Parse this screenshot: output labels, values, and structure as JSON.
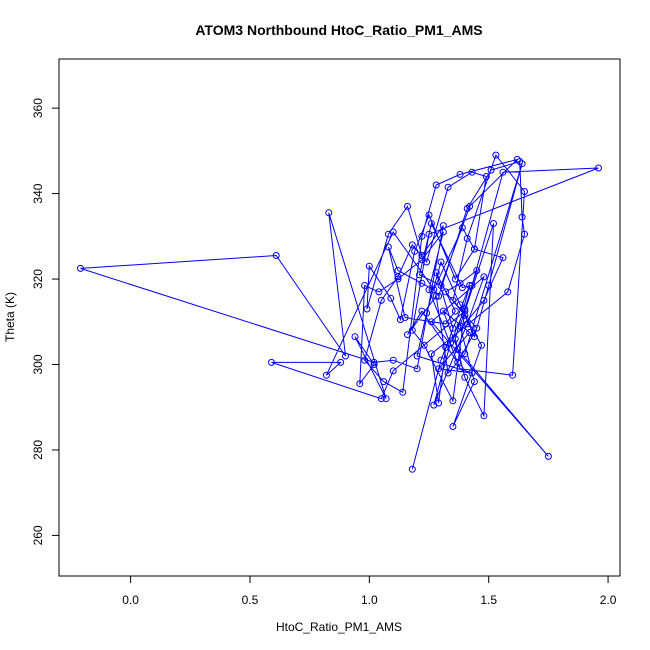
{
  "chart_data": {
    "type": "line",
    "title": "ATOM3 Northbound HtoC_Ratio_PM1_AMS",
    "xlabel": "HtoC_Ratio_PM1_AMS",
    "ylabel": "Theta (K)",
    "xlim": [
      -0.3,
      2.05
    ],
    "ylim": [
      250.5,
      371.5
    ],
    "xticks": [
      "0.0",
      "0.5",
      "1.0",
      "1.5",
      "2.0"
    ],
    "yticks": [
      "260",
      "280",
      "300",
      "320",
      "340",
      "360"
    ],
    "xtick_values": [
      0.0,
      0.5,
      1.0,
      1.5,
      2.0
    ],
    "ytick_values": [
      260,
      280,
      300,
      320,
      340,
      360
    ],
    "grid": false,
    "legend": "none",
    "series_color": "#0000ff",
    "markers": "open-circle",
    "series": [
      {
        "x": [
          1.18,
          1.3,
          1.42,
          1.36,
          1.4,
          1.48,
          1.52,
          1.38,
          1.44,
          1.35,
          1.47,
          1.4,
          1.32,
          1.38,
          1.45,
          1.4,
          1.34,
          1.27,
          1.41,
          1.48,
          1.26,
          1.75,
          1.37,
          1.31,
          1.42,
          1.29,
          1.43,
          1.2,
          1.24,
          1.3,
          1.38,
          1.44,
          1.5,
          1.64,
          1.4,
          1.33,
          1.28,
          1.16,
          1.22,
          1.37,
          1.45,
          1.35,
          1.41,
          1.53,
          1.65,
          1.6,
          1.38,
          1.25,
          1.31,
          1.22,
          1.12,
          1.04,
          0.98,
          0.96,
          1.02,
          0.94,
          1.07,
          0.83,
          0.9,
          0.61,
          -0.21,
          1.02,
          1.1,
          1.2,
          1.31,
          1.22,
          1.16,
          1.08,
          0.99,
          1.0,
          1.09,
          1.13,
          1.19,
          1.25,
          1.36,
          1.44,
          1.49,
          1.43,
          1.33,
          1.24,
          1.18,
          1.12,
          1.05,
          0.98,
          1.06,
          1.14,
          1.22,
          1.28,
          1.38,
          1.62,
          1.42,
          1.3,
          1.21,
          1.26,
          1.39,
          1.43,
          1.56,
          1.96,
          1.25,
          1.18,
          1.23,
          1.35,
          1.4,
          1.1,
          1.05,
          0.59,
          0.88,
          0.82,
          1.1,
          1.29,
          1.41,
          1.51,
          1.63,
          1.64,
          1.65,
          1.58,
          1.26,
          1.29,
          1.32,
          1.48,
          1.56,
          1.44,
          1.39,
          1.27,
          1.22,
          1.12,
          1.08,
          1.15,
          1.32,
          1.36,
          1.28,
          1.35
        ],
        "y": [
          275.5,
          301.0,
          318.5,
          306.0,
          297.0,
          288.0,
          333.0,
          309.0,
          296.0,
          285.5,
          304.5,
          311.5,
          317.0,
          319.0,
          322.0,
          313.0,
          305.0,
          290.5,
          309.5,
          320.5,
          310.0,
          278.5,
          303.5,
          312.5,
          307.5,
          299.0,
          298.0,
          302.0,
          312.0,
          324.0,
          314.0,
          306.5,
          318.5,
          347.0,
          302.5,
          298.0,
          316.0,
          307.0,
          312.5,
          300.5,
          308.5,
          315.0,
          329.5,
          349.0,
          340.5,
          297.5,
          299.0,
          317.5,
          331.0,
          324.5,
          320.0,
          317.0,
          318.5,
          295.5,
          300.0,
          306.5,
          292.0,
          335.5,
          302.0,
          325.5,
          322.5,
          300.5,
          301.0,
          299.0,
          332.5,
          325.5,
          337.0,
          330.5,
          313.0,
          323.0,
          315.5,
          310.5,
          326.5,
          335.0,
          320.0,
          327.0,
          344.0,
          345.0,
          341.5,
          324.0,
          328.0,
          320.5,
          315.0,
          301.0,
          296.0,
          293.5,
          330.0,
          342.0,
          344.5,
          348.0,
          337.0,
          318.5,
          321.0,
          333.0,
          318.0,
          318.5,
          345.0,
          346.0,
          330.5,
          308.0,
          304.5,
          291.5,
          312.5,
          298.5,
          292.0,
          300.5,
          300.5,
          297.5,
          331.0,
          316.0,
          336.5,
          345.5,
          347.5,
          334.5,
          330.5,
          317.0,
          302.5,
          291.0,
          304.0,
          315.0,
          325.0,
          327.0,
          332.0,
          317.5,
          319.0,
          322.0,
          327.5,
          311.0,
          309.5,
          312.5,
          321.5,
          308.5
        ]
      }
    ]
  }
}
